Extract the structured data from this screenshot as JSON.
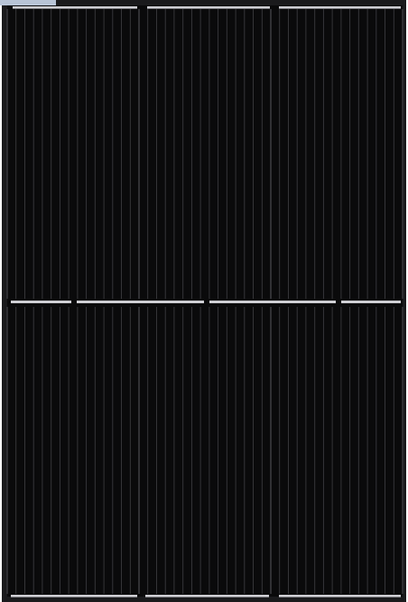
{
  "image": {
    "subject": "solar-panel",
    "colors": {
      "frame": "#1a1a1c",
      "cell": "#0a0a0b",
      "cell_line": "#3a3a3e",
      "busbar": "#cfcfd4",
      "corner_highlight": "#b8c4d6",
      "background": "#ffffff"
    },
    "layout": {
      "halves": 2,
      "strings_per_half": 3,
      "fingers_per_string": 15
    }
  }
}
